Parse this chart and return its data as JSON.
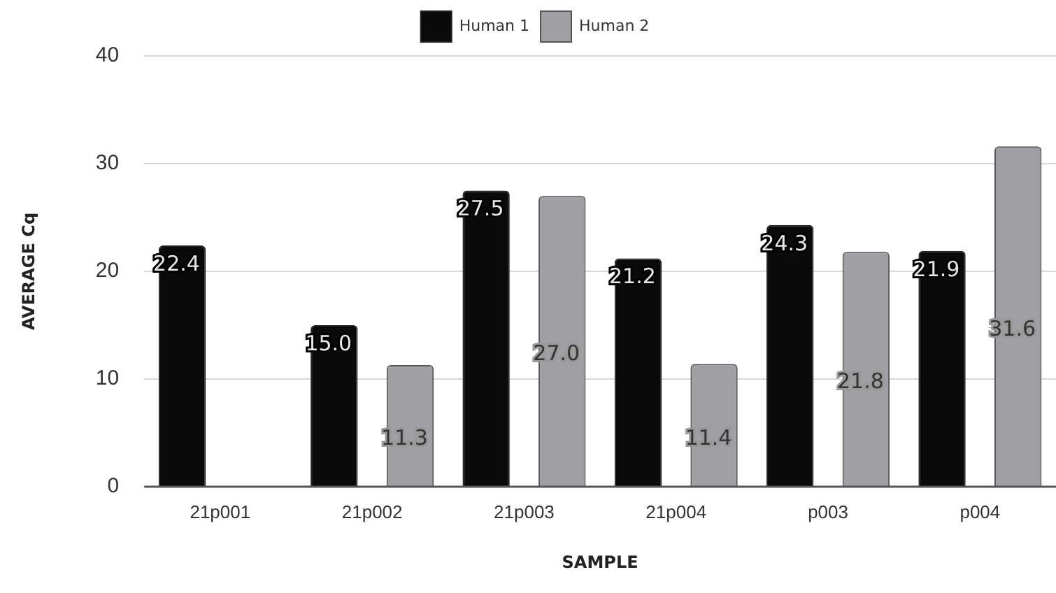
{
  "chart_data": {
    "type": "bar",
    "xlabel": "SAMPLE",
    "ylabel": "AVERAGE Cq",
    "categories": [
      "21p001",
      "21p002",
      "21p003",
      "21p004",
      "p003",
      "p004"
    ],
    "series": [
      {
        "name": "Human 1",
        "color": "#0a0a0a",
        "values": [
          22.4,
          15.0,
          27.5,
          21.2,
          24.3,
          21.9
        ],
        "value_labels": [
          "22.4",
          "15.0",
          "27.5",
          "21.2",
          "24.3",
          "21.9"
        ]
      },
      {
        "name": "Human 2",
        "color": "#a0a0a4",
        "values": [
          null,
          11.3,
          27.0,
          11.4,
          21.8,
          31.6
        ],
        "value_labels": [
          null,
          "11.3",
          "27.0",
          "11.4",
          "21.8",
          "31.6"
        ]
      }
    ],
    "ylim": [
      0,
      40
    ],
    "yticks": [
      0,
      10,
      20,
      30,
      40
    ],
    "grid": "y",
    "legend": "top"
  }
}
